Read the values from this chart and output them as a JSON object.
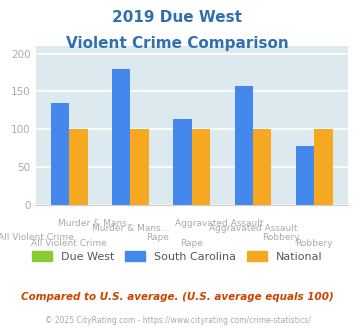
{
  "title_line1": "2019 Due West",
  "title_line2": "Violent Crime Comparison",
  "title_color": "#3070b0",
  "categories": [
    "All Violent Crime",
    "Murder & Mans...",
    "Rape",
    "Aggravated Assault",
    "Robbery"
  ],
  "due_west": [
    0,
    0,
    0,
    0,
    0
  ],
  "south_carolina": [
    135,
    180,
    113,
    157,
    78
  ],
  "national": [
    100,
    100,
    100,
    100,
    100
  ],
  "bar_color_due_west": "#88cc33",
  "bar_color_sc": "#4488ee",
  "bar_color_national": "#f5a820",
  "ylim": [
    0,
    210
  ],
  "yticks": [
    0,
    50,
    100,
    150,
    200
  ],
  "background_color": "#dce9ef",
  "grid_color": "#ffffff",
  "footer_text": "Compared to U.S. average. (U.S. average equals 100)",
  "copyright_text": "© 2025 CityRating.com - https://www.cityrating.com/crime-statistics/",
  "tick_label_color": "#aaaaaa",
  "label_color": "#aaaaaa",
  "legend_text_color": "#555566",
  "footer_color": "#cc4400",
  "copyright_color": "#aaaaaa"
}
